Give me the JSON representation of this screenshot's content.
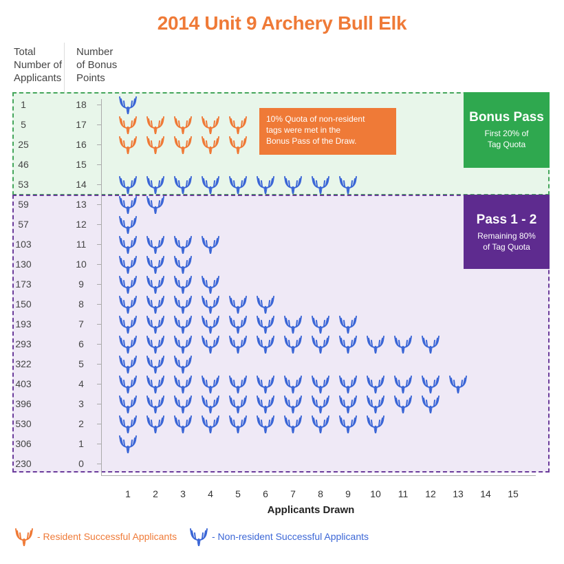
{
  "title": "2014 Unit 9 Archery Bull Elk",
  "columns": {
    "applicants_header": [
      "Total",
      "Number of",
      "Applicants"
    ],
    "points_header": [
      "Number",
      "of Bonus",
      "Points"
    ]
  },
  "colors": {
    "resident": "#ef7a37",
    "nonresident": "#3b66d6",
    "bonus_pass": "#2fa84f",
    "pass12": "#5e2b8f"
  },
  "chart_data": {
    "type": "scatter",
    "title": "2014 Unit 9 Archery Bull Elk",
    "xlabel": "Applicants Drawn",
    "ylabel": "Number of Bonus Points",
    "x_ticks": [
      "1",
      "2",
      "3",
      "4",
      "5",
      "6",
      "7",
      "8",
      "9",
      "10",
      "11",
      "12",
      "13",
      "14",
      "15"
    ],
    "xlim": [
      1,
      15
    ],
    "ylim": [
      0,
      18
    ],
    "rows": [
      {
        "points": 18,
        "total_applicants": "1",
        "resident": 0,
        "nonresident": 1
      },
      {
        "points": 17,
        "total_applicants": "5",
        "resident": 5,
        "nonresident": 0
      },
      {
        "points": 16,
        "total_applicants": "25",
        "resident": 5,
        "nonresident": 0
      },
      {
        "points": 15,
        "total_applicants": "46",
        "resident": 0,
        "nonresident": 0
      },
      {
        "points": 14,
        "total_applicants": "53",
        "resident": 0,
        "nonresident": 9
      },
      {
        "points": 13,
        "total_applicants": "59",
        "resident": 0,
        "nonresident": 2
      },
      {
        "points": 12,
        "total_applicants": "57",
        "resident": 0,
        "nonresident": 1
      },
      {
        "points": 11,
        "total_applicants": "103",
        "resident": 0,
        "nonresident": 4
      },
      {
        "points": 10,
        "total_applicants": "130",
        "resident": 0,
        "nonresident": 3
      },
      {
        "points": 9,
        "total_applicants": "173",
        "resident": 0,
        "nonresident": 4
      },
      {
        "points": 8,
        "total_applicants": "150",
        "resident": 0,
        "nonresident": 6
      },
      {
        "points": 7,
        "total_applicants": "193",
        "resident": 0,
        "nonresident": 9
      },
      {
        "points": 6,
        "total_applicants": "293",
        "resident": 0,
        "nonresident": 12
      },
      {
        "points": 5,
        "total_applicants": "322",
        "resident": 0,
        "nonresident": 3
      },
      {
        "points": 4,
        "total_applicants": "403",
        "resident": 0,
        "nonresident": 13
      },
      {
        "points": 3,
        "total_applicants": "396",
        "resident": 0,
        "nonresident": 12
      },
      {
        "points": 2,
        "total_applicants": "530",
        "resident": 0,
        "nonresident": 10
      },
      {
        "points": 1,
        "total_applicants": "306",
        "resident": 0,
        "nonresident": 1
      },
      {
        "points": 0,
        "total_applicants": "230",
        "resident": 0,
        "nonresident": 0
      }
    ],
    "legend": [
      {
        "name": "- Resident Successful Applicants",
        "color": "#ef7a37"
      },
      {
        "name": "- Non-resident Successful Applicants",
        "color": "#3b66d6"
      }
    ]
  },
  "annotations": {
    "note": [
      "10% Quota of non-resident",
      "tags were met in the",
      "Bonus Pass of the Draw."
    ],
    "bonus_pass": {
      "title": "Bonus Pass",
      "subtitle": [
        "First 20% of",
        "Tag Quota"
      ]
    },
    "pass12": {
      "title": "Pass 1 - 2",
      "subtitle": [
        "Remaining 80%",
        "of Tag Quota"
      ]
    }
  }
}
